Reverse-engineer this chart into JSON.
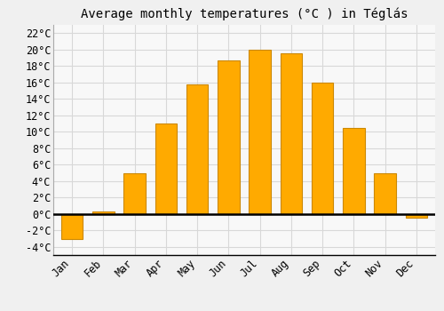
{
  "title": "Average monthly temperatures (°C ) in Téglás",
  "months": [
    "Jan",
    "Feb",
    "Mar",
    "Apr",
    "May",
    "Jun",
    "Jul",
    "Aug",
    "Sep",
    "Oct",
    "Nov",
    "Dec"
  ],
  "values": [
    -3.0,
    0.3,
    5.0,
    11.0,
    15.8,
    18.7,
    20.0,
    19.5,
    16.0,
    10.5,
    5.0,
    -0.5
  ],
  "bar_color": "#FFAA00",
  "bar_edge_color": "#CC8800",
  "background_color": "#f0f0f0",
  "plot_bg_color": "#f8f8f8",
  "grid_color": "#d8d8d8",
  "zero_line_color": "#000000",
  "ylim": [
    -5,
    23
  ],
  "yticks": [
    -4,
    -2,
    0,
    2,
    4,
    6,
    8,
    10,
    12,
    14,
    16,
    18,
    20,
    22
  ],
  "title_fontsize": 10,
  "tick_fontsize": 8.5,
  "font_family": "monospace"
}
